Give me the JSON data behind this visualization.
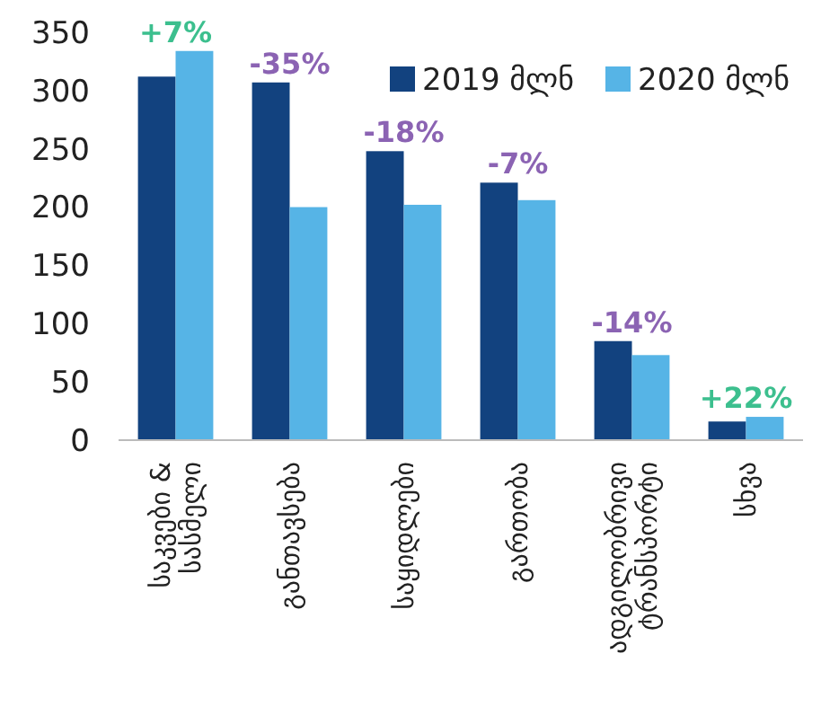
{
  "chart_data": {
    "type": "bar",
    "categories": [
      "საკვები & სასმელი",
      "განთავსება",
      "საყიდლები",
      "გართობა",
      "ადგილობრივი ტრანსპორტი",
      "სხვა"
    ],
    "series": [
      {
        "name": "2019 მლნ",
        "color": "#12427f",
        "values": [
          312,
          307,
          248,
          221,
          85,
          16
        ]
      },
      {
        "name": "2020 მლნ",
        "color": "#56b4e6",
        "values": [
          334,
          200,
          202,
          206,
          73,
          20
        ]
      }
    ],
    "ylim": [
      0,
      350
    ],
    "yticks": [
      0,
      50,
      100,
      150,
      200,
      250,
      300,
      350
    ],
    "grid": false,
    "legend": "top right",
    "annotations": [
      {
        "text": "+7%",
        "x": "საკვები & სასმელი",
        "y": 334
      },
      {
        "text": "-35%",
        "x": "განთავსება",
        "y": 307
      },
      {
        "text": "-18%",
        "x": "საყიდლები",
        "y": 248
      },
      {
        "text": "-7%",
        "x": "გართობა",
        "y": 221
      },
      {
        "text": "-14%",
        "x": "ადგილობრივი ტრანსპორტი",
        "y": 85
      },
      {
        "text": "+22%",
        "x": "სხვა",
        "y": 20
      }
    ]
  }
}
